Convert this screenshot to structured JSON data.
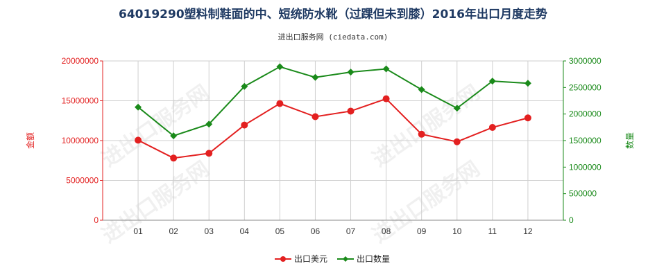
{
  "chart_data": {
    "type": "line",
    "title": "64019290塑料制鞋面的中、短统防水靴（过踝但未到膝）2016年出口月度走势",
    "subtitle": "进出口服务网 (ciedata.com)",
    "categories": [
      "01",
      "02",
      "03",
      "04",
      "05",
      "06",
      "07",
      "08",
      "09",
      "10",
      "11",
      "12"
    ],
    "y_left": {
      "label": "金额",
      "ylim": [
        0,
        20000000
      ],
      "ticks": [
        0,
        5000000,
        10000000,
        15000000,
        20000000
      ],
      "tick_labels": [
        "0",
        "5000000",
        "10000000",
        "15000000",
        "20000000"
      ]
    },
    "y_right": {
      "label": "数量",
      "ylim": [
        0,
        3000000
      ],
      "ticks": [
        0,
        500000,
        1000000,
        1500000,
        2000000,
        2500000,
        3000000
      ],
      "tick_labels": [
        "0",
        "500000",
        "1000000",
        "1500000",
        "2000000",
        "2500000",
        "3000000"
      ]
    },
    "grid": true,
    "legend_position": "bottom-center",
    "series": [
      {
        "name": "出口美元",
        "axis": "left",
        "color": "#e32020",
        "values": [
          10050000,
          7800000,
          8400000,
          11950000,
          14650000,
          13000000,
          13700000,
          15250000,
          10800000,
          9850000,
          11650000,
          12850000
        ]
      },
      {
        "name": "出口数量",
        "axis": "right",
        "color": "#1a8a1a",
        "values": [
          2130000,
          1590000,
          1810000,
          2520000,
          2890000,
          2690000,
          2790000,
          2850000,
          2460000,
          2110000,
          2620000,
          2580000
        ]
      }
    ],
    "watermark": "进出口服务网"
  }
}
